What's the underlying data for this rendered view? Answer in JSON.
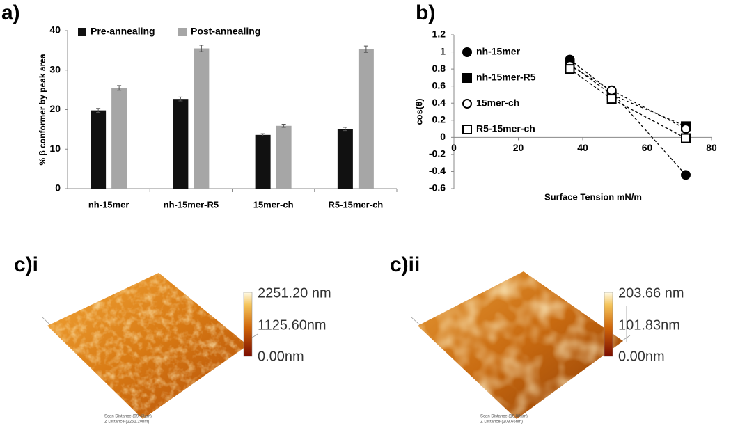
{
  "panels": {
    "a": "a)",
    "b": "b)",
    "c1": "c)i",
    "c2": "c)ii"
  },
  "chart_data": [
    {
      "type": "bar",
      "ylabel": "% β conformer by peak area",
      "categories": [
        "nh-15mer",
        "nh-15mer-R5",
        "15mer-ch",
        "R5-15mer-ch"
      ],
      "series": [
        {
          "name": "Pre-annealing",
          "color": "#111111",
          "values": [
            19.8,
            22.7,
            13.6,
            15.1
          ],
          "errors": [
            0.5,
            0.5,
            0.3,
            0.4
          ]
        },
        {
          "name": "Post-annealing",
          "color": "#a6a6a6",
          "values": [
            25.5,
            35.5,
            15.9,
            35.3
          ],
          "errors": [
            0.6,
            0.8,
            0.4,
            0.8
          ]
        }
      ],
      "ylim": [
        0,
        40
      ],
      "yticks": [
        0,
        10,
        20,
        30,
        40
      ],
      "grid": false,
      "legend": "top"
    },
    {
      "type": "line",
      "xlabel": "Surface Tension mN/m",
      "ylabel": "cos(θ)",
      "x": [
        36,
        49,
        72
      ],
      "series": [
        {
          "name": "nh-15mer",
          "color": "#000000",
          "marker": "circle",
          "filled": true,
          "values": [
            0.91,
            0.53,
            -0.44
          ]
        },
        {
          "name": "nh-15mer-R5",
          "color": "#000000",
          "marker": "square",
          "filled": true,
          "values": [
            0.86,
            0.5,
            0.13
          ]
        },
        {
          "name": "15mer-ch",
          "color": "#000000",
          "marker": "circle",
          "filled": false,
          "values": [
            0.84,
            0.55,
            0.1
          ]
        },
        {
          "name": "R5-15mer-ch",
          "color": "#000000",
          "marker": "square",
          "filled": false,
          "values": [
            0.8,
            0.45,
            -0.01
          ]
        }
      ],
      "linestyle": "dashed",
      "xlim": [
        0,
        80
      ],
      "xticks": [
        0,
        20,
        40,
        60,
        80
      ],
      "ylim": [
        -0.6,
        1.2
      ],
      "yticks": [
        -0.6,
        -0.4,
        -0.2,
        0,
        0.2,
        0.4,
        0.6,
        0.8,
        1,
        1.2
      ],
      "grid": false,
      "legend": "left"
    }
  ],
  "afm": [
    {
      "colorbar_labels": [
        "2251.20 nm",
        "1125.60nm",
        "0.00nm"
      ],
      "scan_distance": "Scan Distance (99.43µm)",
      "z_distance": "Z Distance (2251.20nm)"
    },
    {
      "colorbar_labels": [
        "203.66 nm",
        "101.83nm",
        "0.00nm"
      ],
      "scan_distance": "Scan Distance (10.00µm)",
      "z_distance": "Z Distance (203.66nm)"
    }
  ]
}
